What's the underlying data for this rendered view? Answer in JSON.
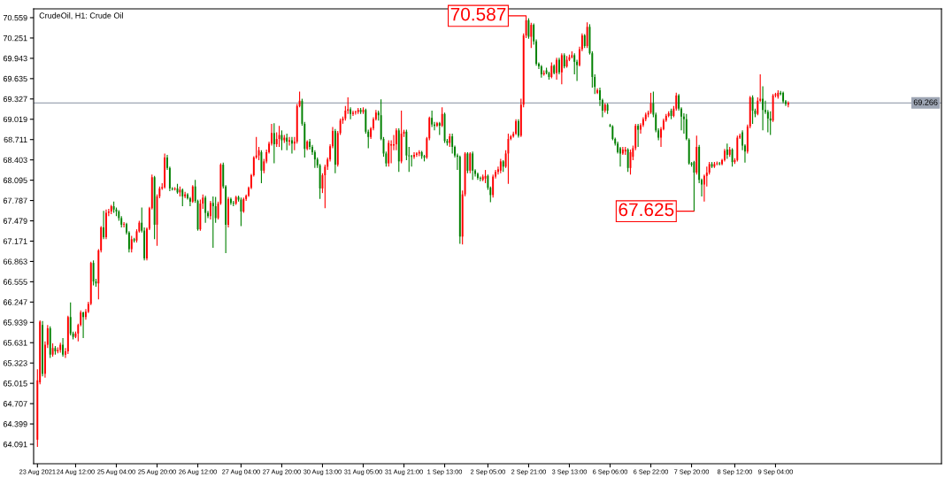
{
  "chart_data": {
    "type": "candlestick",
    "title": "CrudeOil, H1: Crude Oil",
    "categories": [
      "23 Aug 2021",
      null,
      null,
      null,
      null,
      null,
      null,
      null,
      null,
      null,
      null,
      null,
      null,
      null,
      null,
      "24 Aug 12:00",
      null,
      null,
      null,
      null,
      null,
      null,
      null,
      null,
      null,
      null,
      null,
      null,
      null,
      null,
      null,
      "25 Aug 04:00",
      null,
      null,
      null,
      null,
      null,
      null,
      null,
      null,
      null,
      null,
      null,
      null,
      null,
      null,
      null,
      "25 Aug 20:00",
      null,
      null,
      null,
      null,
      null,
      null,
      null,
      null,
      null,
      null,
      null,
      null,
      null,
      null,
      null,
      "26 Aug 12:00",
      null,
      null,
      null,
      null,
      null,
      null,
      null,
      null,
      null,
      null,
      null,
      null,
      null,
      null,
      null,
      null,
      "27 Aug 04:00",
      null,
      null,
      null,
      null,
      null,
      null,
      null,
      null,
      null,
      null,
      null,
      null,
      null,
      null,
      null,
      "27 Aug 20:00",
      null,
      null,
      null,
      null,
      null,
      null,
      null,
      null,
      null,
      null,
      null,
      null,
      null,
      null,
      null,
      "30 Aug 13:00",
      null,
      null,
      null,
      null,
      null,
      null,
      null,
      null,
      null,
      null,
      null,
      null,
      null,
      null,
      null,
      "31 Aug 05:00",
      null,
      null,
      null,
      null,
      null,
      null,
      null,
      null,
      null,
      null,
      null,
      null,
      null,
      null,
      null,
      "31 Aug 21:00",
      null,
      null,
      null,
      null,
      null,
      null,
      null,
      null,
      null,
      null,
      null,
      null,
      null,
      null,
      null,
      "1 Sep 13:00",
      null,
      null,
      null,
      null,
      null,
      null,
      null,
      null,
      null,
      null,
      null,
      null,
      null,
      null,
      null,
      null,
      "2 Sep 05:00",
      null,
      null,
      null,
      null,
      null,
      null,
      null,
      null,
      null,
      null,
      null,
      null,
      null,
      null,
      null,
      "2 Sep 21:00",
      null,
      null,
      null,
      null,
      null,
      null,
      null,
      null,
      null,
      null,
      null,
      null,
      null,
      null,
      null,
      "3 Sep 13:00",
      null,
      null,
      null,
      null,
      null,
      null,
      null,
      null,
      null,
      null,
      null,
      null,
      null,
      null,
      null,
      "6 Sep 06:00",
      null,
      null,
      null,
      null,
      null,
      null,
      null,
      null,
      null,
      null,
      null,
      null,
      null,
      null,
      null,
      "6 Sep 22:00",
      null,
      null,
      null,
      null,
      null,
      null,
      null,
      null,
      null,
      null,
      null,
      null,
      null,
      null,
      null,
      "7 Sep 20:00",
      null,
      null,
      null,
      null,
      null,
      null,
      null,
      null,
      null,
      null,
      null,
      null,
      null,
      null,
      null,
      null,
      "8 Sep 12:00",
      null,
      null,
      null,
      null,
      null,
      null,
      null,
      null,
      null,
      null,
      null,
      null,
      null,
      null,
      null,
      "9 Sep 04:00",
      null,
      null,
      null,
      null,
      null
    ],
    "ohlc": [
      [
        64.16,
        65.23,
        64.05,
        65.06
      ],
      [
        65.03,
        65.97,
        65.0,
        65.95
      ],
      [
        65.9,
        65.96,
        65.12,
        65.16
      ],
      [
        65.16,
        65.65,
        65.1,
        65.6
      ],
      [
        65.6,
        65.9,
        65.55,
        65.85
      ],
      [
        65.85,
        65.88,
        65.4,
        65.45
      ],
      [
        65.45,
        65.62,
        65.42,
        65.55
      ],
      [
        65.55,
        65.58,
        65.45,
        65.5
      ],
      [
        65.5,
        65.56,
        65.47,
        65.52
      ],
      [
        65.52,
        65.63,
        65.48,
        65.6
      ],
      [
        65.6,
        65.7,
        65.42,
        65.45
      ],
      [
        65.45,
        65.55,
        65.4,
        65.5
      ],
      [
        65.5,
        66.04,
        65.46,
        66.02
      ],
      [
        66.02,
        66.24,
        65.74,
        65.77
      ],
      [
        65.77,
        65.8,
        65.68,
        65.72
      ],
      [
        65.72,
        65.8,
        65.7,
        65.77
      ],
      [
        65.77,
        65.92,
        65.65,
        65.9
      ],
      [
        65.9,
        66.12,
        65.88,
        66.09
      ],
      [
        66.09,
        66.1,
        65.7,
        66.02
      ],
      [
        66.02,
        66.14,
        65.98,
        66.1
      ],
      [
        66.1,
        66.25,
        66.08,
        66.22
      ],
      [
        66.22,
        66.86,
        66.2,
        66.84
      ],
      [
        66.84,
        66.88,
        66.5,
        66.56
      ],
      [
        66.56,
        66.6,
        66.48,
        66.53
      ],
      [
        66.53,
        67.05,
        66.29,
        67.03
      ],
      [
        67.03,
        67.4,
        67.0,
        67.38
      ],
      [
        67.38,
        67.63,
        67.2,
        67.23
      ],
      [
        67.23,
        67.65,
        67.2,
        67.6
      ],
      [
        67.6,
        67.66,
        67.55,
        67.62
      ],
      [
        67.62,
        67.72,
        67.58,
        67.7
      ],
      [
        67.7,
        67.77,
        67.6,
        67.65
      ],
      [
        67.65,
        67.68,
        67.55,
        67.62
      ],
      [
        67.62,
        67.64,
        67.48,
        67.52
      ],
      [
        67.52,
        67.55,
        67.38,
        67.42
      ],
      [
        67.42,
        67.46,
        67.38,
        67.43
      ],
      [
        67.43,
        67.45,
        67.27,
        67.3
      ],
      [
        67.3,
        67.32,
        67.0,
        67.05
      ],
      [
        67.05,
        67.25,
        67.0,
        67.2
      ],
      [
        67.2,
        67.22,
        67.15,
        67.18
      ],
      [
        67.18,
        67.35,
        67.15,
        67.32
      ],
      [
        67.32,
        67.48,
        67.3,
        67.45
      ],
      [
        67.45,
        67.68,
        67.3,
        67.33
      ],
      [
        67.33,
        67.38,
        66.88,
        66.91
      ],
      [
        66.91,
        67.38,
        66.88,
        67.36
      ],
      [
        67.36,
        67.69,
        67.34,
        67.67
      ],
      [
        67.67,
        68.18,
        67.65,
        68.14
      ],
      [
        68.14,
        68.16,
        67.2,
        67.42
      ],
      [
        67.42,
        67.88,
        67.1,
        67.85
      ],
      [
        67.85,
        68.0,
        67.82,
        67.97
      ],
      [
        67.97,
        68.05,
        67.95,
        67.99
      ],
      [
        67.99,
        68.5,
        67.97,
        68.44
      ],
      [
        68.44,
        68.48,
        68.25,
        68.28
      ],
      [
        68.28,
        68.3,
        67.93,
        67.97
      ],
      [
        67.97,
        67.99,
        67.94,
        67.96
      ],
      [
        67.96,
        67.99,
        67.94,
        67.97
      ],
      [
        67.97,
        68.04,
        67.89,
        67.91
      ],
      [
        67.91,
        68.0,
        67.85,
        67.95
      ],
      [
        67.95,
        67.97,
        67.7,
        67.85
      ],
      [
        67.85,
        67.92,
        67.82,
        67.88
      ],
      [
        67.88,
        67.9,
        67.8,
        67.82
      ],
      [
        67.82,
        67.84,
        67.7,
        67.77
      ],
      [
        67.77,
        68.02,
        67.75,
        68.0
      ],
      [
        68.0,
        68.1,
        67.75,
        67.78
      ],
      [
        67.78,
        67.8,
        67.33,
        67.35
      ],
      [
        67.35,
        67.8,
        67.33,
        67.74
      ],
      [
        67.74,
        67.88,
        67.66,
        67.83
      ],
      [
        67.83,
        67.86,
        67.45,
        67.6
      ],
      [
        67.6,
        67.63,
        67.52,
        67.55
      ],
      [
        67.55,
        67.78,
        67.5,
        67.75
      ],
      [
        67.75,
        67.85,
        67.07,
        67.7
      ],
      [
        67.7,
        67.84,
        67.45,
        67.52
      ],
      [
        67.52,
        67.77,
        67.5,
        67.74
      ],
      [
        67.74,
        68.35,
        67.72,
        68.33
      ],
      [
        68.33,
        68.36,
        67.97,
        68.0
      ],
      [
        68.0,
        68.02,
        66.99,
        67.42
      ],
      [
        67.42,
        67.84,
        67.38,
        67.81
      ],
      [
        67.81,
        67.83,
        67.72,
        67.75
      ],
      [
        67.75,
        67.78,
        67.7,
        67.74
      ],
      [
        67.74,
        67.86,
        67.72,
        67.84
      ],
      [
        67.84,
        67.86,
        67.77,
        67.8
      ],
      [
        67.8,
        67.83,
        67.4,
        67.62
      ],
      [
        67.62,
        67.83,
        67.6,
        67.81
      ],
      [
        67.81,
        67.88,
        67.78,
        67.86
      ],
      [
        67.86,
        68.0,
        67.84,
        67.98
      ],
      [
        67.98,
        68.19,
        67.96,
        68.17
      ],
      [
        68.17,
        68.46,
        68.15,
        68.44
      ],
      [
        68.44,
        68.75,
        68.42,
        68.47
      ],
      [
        68.47,
        68.6,
        68.4,
        68.55
      ],
      [
        68.52,
        68.55,
        68.05,
        68.24
      ],
      [
        68.24,
        68.42,
        68.2,
        68.38
      ],
      [
        68.38,
        68.56,
        68.35,
        68.52
      ],
      [
        68.52,
        68.68,
        68.5,
        68.65
      ],
      [
        68.65,
        68.95,
        68.62,
        68.81
      ],
      [
        68.81,
        68.96,
        68.35,
        68.64
      ],
      [
        68.64,
        68.82,
        68.6,
        68.72
      ],
      [
        68.72,
        68.92,
        68.6,
        68.78
      ],
      [
        68.78,
        68.85,
        68.55,
        68.7
      ],
      [
        68.7,
        68.78,
        68.66,
        68.74
      ],
      [
        68.74,
        68.8,
        68.55,
        68.68
      ],
      [
        68.68,
        68.75,
        68.62,
        68.7
      ],
      [
        68.7,
        68.75,
        68.5,
        68.65
      ],
      [
        68.65,
        68.75,
        68.55,
        68.68
      ],
      [
        68.68,
        69.25,
        68.65,
        69.22
      ],
      [
        69.22,
        69.44,
        69.2,
        69.3
      ],
      [
        69.3,
        69.33,
        68.92,
        68.95
      ],
      [
        68.95,
        68.98,
        68.44,
        68.57
      ],
      [
        68.57,
        68.7,
        68.55,
        68.68
      ],
      [
        68.68,
        68.72,
        68.56,
        68.6
      ],
      [
        68.6,
        68.63,
        68.48,
        68.52
      ],
      [
        68.52,
        68.55,
        68.28,
        68.41
      ],
      [
        68.41,
        68.44,
        68.28,
        68.32
      ],
      [
        68.32,
        68.34,
        67.81,
        67.97
      ],
      [
        67.97,
        68.2,
        67.9,
        68.17
      ],
      [
        68.17,
        68.33,
        67.67,
        68.3
      ],
      [
        68.3,
        68.44,
        68.25,
        68.41
      ],
      [
        68.41,
        68.64,
        68.38,
        68.61
      ],
      [
        68.61,
        68.9,
        68.58,
        68.84
      ],
      [
        68.84,
        68.87,
        68.2,
        68.33
      ],
      [
        68.33,
        68.84,
        68.3,
        68.81
      ],
      [
        68.81,
        69.03,
        68.78,
        69.0
      ],
      [
        69.0,
        69.06,
        68.95,
        69.03
      ],
      [
        69.03,
        69.22,
        69.0,
        69.15
      ],
      [
        69.15,
        69.35,
        69.1,
        69.17
      ],
      [
        69.17,
        69.2,
        69.02,
        69.1
      ],
      [
        69.1,
        69.15,
        69.07,
        69.12
      ],
      [
        69.12,
        69.15,
        69.09,
        69.13
      ],
      [
        69.13,
        69.19,
        69.1,
        69.16
      ],
      [
        69.16,
        69.19,
        69.1,
        69.13
      ],
      [
        69.13,
        69.2,
        69.1,
        69.16
      ],
      [
        69.16,
        69.18,
        68.8,
        68.83
      ],
      [
        68.83,
        68.86,
        68.58,
        68.75
      ],
      [
        68.75,
        68.9,
        68.72,
        68.88
      ],
      [
        68.88,
        69.05,
        68.85,
        69.02
      ],
      [
        69.02,
        69.16,
        69.0,
        69.12
      ],
      [
        69.12,
        69.15,
        69.0,
        69.08
      ],
      [
        69.08,
        69.32,
        68.7,
        68.72
      ],
      [
        68.72,
        68.75,
        68.45,
        68.5
      ],
      [
        68.5,
        68.53,
        68.3,
        68.35
      ],
      [
        68.35,
        68.7,
        68.3,
        68.66
      ],
      [
        68.62,
        68.7,
        68.35,
        68.64
      ],
      [
        68.62,
        68.78,
        68.55,
        68.64
      ],
      [
        68.64,
        68.88,
        68.55,
        68.85
      ],
      [
        68.85,
        68.88,
        68.22,
        68.38
      ],
      [
        68.38,
        69.15,
        68.35,
        68.8
      ],
      [
        68.8,
        68.86,
        68.75,
        68.83
      ],
      [
        68.83,
        68.86,
        68.4,
        68.47
      ],
      [
        68.47,
        68.6,
        68.22,
        68.46
      ],
      [
        68.46,
        68.48,
        68.3,
        68.45
      ],
      [
        68.45,
        68.52,
        68.42,
        68.48
      ],
      [
        68.48,
        68.52,
        68.45,
        68.5
      ],
      [
        68.5,
        68.55,
        68.46,
        68.52
      ],
      [
        68.52,
        68.54,
        68.42,
        68.46
      ],
      [
        68.46,
        68.48,
        68.38,
        68.44
      ],
      [
        68.44,
        68.75,
        68.42,
        68.73
      ],
      [
        68.73,
        69.06,
        68.7,
        69.04
      ],
      [
        69.04,
        69.15,
        68.9,
        68.94
      ],
      [
        68.94,
        68.98,
        68.85,
        68.92
      ],
      [
        68.92,
        68.98,
        68.9,
        68.96
      ],
      [
        68.96,
        68.98,
        68.78,
        68.92
      ],
      [
        68.92,
        69.2,
        68.9,
        69.1
      ],
      [
        69.1,
        69.12,
        68.66,
        68.69
      ],
      [
        68.69,
        68.72,
        68.62,
        68.66
      ],
      [
        68.66,
        68.8,
        68.6,
        68.76
      ],
      [
        68.76,
        68.8,
        68.5,
        68.6
      ],
      [
        68.6,
        68.62,
        68.44,
        68.47
      ],
      [
        68.47,
        68.5,
        68.25,
        68.45
      ],
      [
        68.45,
        68.47,
        67.13,
        67.24
      ],
      [
        67.24,
        67.94,
        67.12,
        67.88
      ],
      [
        67.88,
        68.52,
        67.85,
        68.5
      ],
      [
        68.5,
        68.52,
        68.2,
        68.24
      ],
      [
        68.24,
        68.52,
        68.2,
        68.5
      ],
      [
        68.5,
        68.53,
        68.1,
        68.24
      ],
      [
        68.24,
        68.26,
        68.15,
        68.19
      ],
      [
        68.19,
        68.21,
        68.1,
        68.13
      ],
      [
        68.13,
        68.15,
        68.08,
        68.12
      ],
      [
        68.1,
        68.18,
        68.08,
        68.15
      ],
      [
        68.12,
        68.25,
        68.05,
        68.16
      ],
      [
        68.16,
        68.18,
        67.95,
        67.98
      ],
      [
        67.98,
        68.0,
        67.76,
        67.87
      ],
      [
        67.87,
        68.18,
        67.83,
        68.15
      ],
      [
        68.15,
        68.25,
        68.12,
        68.22
      ],
      [
        68.22,
        68.3,
        68.18,
        68.26
      ],
      [
        68.24,
        68.42,
        68.2,
        68.38
      ],
      [
        68.38,
        68.4,
        68.22,
        68.3
      ],
      [
        68.3,
        68.55,
        68.28,
        68.5
      ],
      [
        68.5,
        68.8,
        68.04,
        68.72
      ],
      [
        68.72,
        68.78,
        68.7,
        68.76
      ],
      [
        68.76,
        68.83,
        68.74,
        68.8
      ],
      [
        68.8,
        69.02,
        68.78,
        68.99
      ],
      [
        68.99,
        69.02,
        68.74,
        68.77
      ],
      [
        68.77,
        69.33,
        68.75,
        69.24
      ],
      [
        69.24,
        70.32,
        69.2,
        70.29
      ],
      [
        70.29,
        70.587,
        70.25,
        70.52
      ],
      [
        70.52,
        70.55,
        70.24,
        70.27
      ],
      [
        70.27,
        70.48,
        70.1,
        70.45
      ],
      [
        70.45,
        70.47,
        70.15,
        70.2
      ],
      [
        70.2,
        70.23,
        69.83,
        69.86
      ],
      [
        69.86,
        69.88,
        69.78,
        69.82
      ],
      [
        69.82,
        69.84,
        69.65,
        69.7
      ],
      [
        69.7,
        69.76,
        69.68,
        69.72
      ],
      [
        69.76,
        69.8,
        69.7,
        69.72
      ],
      [
        69.72,
        69.74,
        69.62,
        69.66
      ],
      [
        69.66,
        69.88,
        69.64,
        69.83
      ],
      [
        69.83,
        69.85,
        69.7,
        69.72
      ],
      [
        69.72,
        69.95,
        69.62,
        69.92
      ],
      [
        69.92,
        69.95,
        69.7,
        69.73
      ],
      [
        69.73,
        70.02,
        69.55,
        69.99
      ],
      [
        69.99,
        70.02,
        69.79,
        69.82
      ],
      [
        69.82,
        69.98,
        69.8,
        69.92
      ],
      [
        69.92,
        70.0,
        69.9,
        69.96
      ],
      [
        69.96,
        70.05,
        69.94,
        69.99
      ],
      [
        69.99,
        70.02,
        69.7,
        69.89
      ],
      [
        69.89,
        69.92,
        69.6,
        69.84
      ],
      [
        69.84,
        70.12,
        69.82,
        70.08
      ],
      [
        70.08,
        70.32,
        70.05,
        70.29
      ],
      [
        70.29,
        70.31,
        70.1,
        70.13
      ],
      [
        70.13,
        70.49,
        70.1,
        70.42
      ],
      [
        70.42,
        70.46,
        70.0,
        70.02
      ],
      [
        70.02,
        70.05,
        69.5,
        69.66
      ],
      [
        69.66,
        69.7,
        69.4,
        69.51
      ],
      [
        69.42,
        69.49,
        69.4,
        69.46
      ],
      [
        69.46,
        69.5,
        69.22,
        69.31
      ],
      [
        69.31,
        69.33,
        69.05,
        69.15
      ],
      [
        69.15,
        69.26,
        69.12,
        69.24
      ],
      [
        69.24,
        69.26,
        69.1,
        69.15
      ],
      [
        68.93,
        68.95,
        68.9,
        68.91
      ],
      [
        68.91,
        68.93,
        68.7,
        68.72
      ],
      [
        68.72,
        68.74,
        68.62,
        68.65
      ],
      [
        68.65,
        68.68,
        68.5,
        68.52
      ],
      [
        68.58,
        68.6,
        68.3,
        68.5
      ],
      [
        68.5,
        68.6,
        68.48,
        68.56
      ],
      [
        68.53,
        68.6,
        68.48,
        68.56
      ],
      [
        68.56,
        68.58,
        68.22,
        68.28
      ],
      [
        68.28,
        68.56,
        68.18,
        68.52
      ],
      [
        68.45,
        68.62,
        68.4,
        68.58
      ],
      [
        68.58,
        68.95,
        68.55,
        68.92
      ],
      [
        68.92,
        68.95,
        68.6,
        68.86
      ],
      [
        68.86,
        68.96,
        68.8,
        68.93
      ],
      [
        68.93,
        69.05,
        68.9,
        69.02
      ],
      [
        69.02,
        69.12,
        68.99,
        69.09
      ],
      [
        69.09,
        69.15,
        69.05,
        69.12
      ],
      [
        69.12,
        69.42,
        69.1,
        69.26
      ],
      [
        69.26,
        69.44,
        69.05,
        69.09
      ],
      [
        69.09,
        69.12,
        68.82,
        68.85
      ],
      [
        68.85,
        68.88,
        68.7,
        68.74
      ],
      [
        68.74,
        68.9,
        68.6,
        68.87
      ],
      [
        68.87,
        69.03,
        68.85,
        69.0
      ],
      [
        69.0,
        69.1,
        68.98,
        69.07
      ],
      [
        69.07,
        69.14,
        69.05,
        69.11
      ],
      [
        69.15,
        69.18,
        69.02,
        69.07
      ],
      [
        69.07,
        69.22,
        69.05,
        69.18
      ],
      [
        69.18,
        69.42,
        69.15,
        69.38
      ],
      [
        69.38,
        69.4,
        69.15,
        69.18
      ],
      [
        69.18,
        69.2,
        68.85,
        69.06
      ],
      [
        69.06,
        69.11,
        68.8,
        69.02
      ],
      [
        69.02,
        69.1,
        68.7,
        68.72
      ],
      [
        68.71,
        68.73,
        68.33,
        68.35
      ],
      [
        68.35,
        68.37,
        68.3,
        68.33
      ],
      [
        68.37,
        68.39,
        67.625,
        68.21
      ],
      [
        68.21,
        68.77,
        68.18,
        68.6
      ],
      [
        68.6,
        68.63,
        68.05,
        68.1
      ],
      [
        68.1,
        68.12,
        67.85,
        68.03
      ],
      [
        68.03,
        68.18,
        67.77,
        68.16
      ],
      [
        68.16,
        68.3,
        68.0,
        68.21
      ],
      [
        68.21,
        68.37,
        68.18,
        68.34
      ],
      [
        68.34,
        68.37,
        68.28,
        68.3
      ],
      [
        68.3,
        68.37,
        68.28,
        68.34
      ],
      [
        68.34,
        68.38,
        68.32,
        68.35
      ],
      [
        68.35,
        68.37,
        68.32,
        68.34
      ],
      [
        68.34,
        68.42,
        68.32,
        68.4
      ],
      [
        68.4,
        68.57,
        68.38,
        68.54
      ],
      [
        68.56,
        68.65,
        68.42,
        68.48
      ],
      [
        68.48,
        68.6,
        68.45,
        68.56
      ],
      [
        68.56,
        68.58,
        68.3,
        68.37
      ],
      [
        68.37,
        68.43,
        68.34,
        68.4
      ],
      [
        68.4,
        68.77,
        68.38,
        68.74
      ],
      [
        68.74,
        68.8,
        68.72,
        68.77
      ],
      [
        68.82,
        68.85,
        68.55,
        68.62
      ],
      [
        68.62,
        68.64,
        68.36,
        68.53
      ],
      [
        68.53,
        68.94,
        68.5,
        68.91
      ],
      [
        68.91,
        69.37,
        68.88,
        69.35
      ],
      [
        69.35,
        69.38,
        68.95,
        69.15
      ],
      [
        69.15,
        69.18,
        69.05,
        69.1
      ],
      [
        69.1,
        69.35,
        69.08,
        69.3
      ],
      [
        69.3,
        69.7,
        69.28,
        69.33
      ],
      [
        69.33,
        69.52,
        68.85,
        69.16
      ],
      [
        69.16,
        69.3,
        69.1,
        69.13
      ],
      [
        69.13,
        69.16,
        68.82,
        69.03
      ],
      [
        69.03,
        69.14,
        68.78,
        69.0
      ],
      [
        69.0,
        69.4,
        68.98,
        69.38
      ],
      [
        69.38,
        69.42,
        69.35,
        69.4
      ],
      [
        69.36,
        69.46,
        69.33,
        69.42
      ],
      [
        69.42,
        69.45,
        69.38,
        69.4
      ],
      [
        69.42,
        69.44,
        69.26,
        69.29
      ],
      [
        69.29,
        69.31,
        69.22,
        69.25
      ],
      [
        69.24,
        69.29,
        69.2,
        69.266
      ]
    ],
    "colors": [
      "#ff0000",
      "#ff0000",
      "#008000",
      "#ff0000",
      "#ff0000",
      "#008000",
      "#ff0000",
      "#008000",
      "#ff0000",
      "#ff0000",
      "#008000",
      "#ff0000",
      "#ff0000",
      "#008000",
      "#008000",
      "#ff0000",
      "#ff0000",
      "#ff0000",
      "#008000",
      "#ff0000",
      "#ff0000",
      "#ff0000",
      "#008000",
      "#008000",
      "#ff0000",
      "#ff0000",
      "#008000",
      "#ff0000",
      "#ff0000",
      "#ff0000",
      "#008000",
      "#008000",
      "#008000",
      "#008000",
      "#ff0000",
      "#008000",
      "#008000",
      "#ff0000",
      "#008000",
      "#ff0000",
      "#ff0000",
      "#008000",
      "#008000",
      "#ff0000",
      "#ff0000",
      "#ff0000",
      "#008000",
      "#ff0000",
      "#ff0000",
      "#ff0000",
      "#ff0000",
      "#008000",
      "#008000",
      "#008000",
      "#ff0000",
      "#008000",
      "#ff0000",
      "#008000",
      "#ff0000",
      "#008000",
      "#008000",
      "#ff0000",
      "#008000",
      "#008000",
      "#ff0000",
      "#ff0000",
      "#008000",
      "#008000",
      "#ff0000",
      "#008000",
      "#008000",
      "#ff0000",
      "#ff0000",
      "#008000",
      "#008000",
      "#ff0000",
      "#008000",
      "#008000",
      "#ff0000",
      "#008000",
      "#008000",
      "#ff0000",
      "#ff0000",
      "#ff0000",
      "#ff0000",
      "#ff0000",
      "#ff0000",
      "#ff0000",
      "#008000",
      "#ff0000",
      "#ff0000",
      "#ff0000",
      "#ff0000",
      "#008000",
      "#ff0000",
      "#ff0000",
      "#008000",
      "#ff0000",
      "#008000",
      "#ff0000",
      "#008000",
      "#ff0000",
      "#ff0000",
      "#ff0000",
      "#008000",
      "#008000",
      "#ff0000",
      "#008000",
      "#008000",
      "#008000",
      "#008000",
      "#008000",
      "#ff0000",
      "#ff0000",
      "#ff0000",
      "#ff0000",
      "#ff0000",
      "#008000",
      "#ff0000",
      "#ff0000",
      "#ff0000",
      "#ff0000",
      "#ff0000",
      "#008000",
      "#ff0000",
      "#ff0000",
      "#ff0000",
      "#008000",
      "#ff0000",
      "#008000",
      "#008000",
      "#ff0000",
      "#ff0000",
      "#ff0000",
      "#008000",
      "#008000",
      "#008000",
      "#008000",
      "#ff0000",
      "#ff0000",
      "#ff0000",
      "#ff0000",
      "#008000",
      "#ff0000",
      "#ff0000",
      "#008000",
      "#008000",
      "#008000",
      "#ff0000",
      "#ff0000",
      "#ff0000",
      "#008000",
      "#008000",
      "#ff0000",
      "#ff0000",
      "#008000",
      "#008000",
      "#ff0000",
      "#008000",
      "#ff0000",
      "#008000",
      "#008000",
      "#ff0000",
      "#008000",
      "#008000",
      "#008000",
      "#008000",
      "#ff0000",
      "#ff0000",
      "#008000",
      "#ff0000",
      "#008000",
      "#008000",
      "#008000",
      "#008000",
      "#ff0000",
      "#ff0000",
      "#008000",
      "#008000",
      "#ff0000",
      "#ff0000",
      "#ff0000",
      "#ff0000",
      "#008000",
      "#ff0000",
      "#ff0000",
      "#ff0000",
      "#ff0000",
      "#ff0000",
      "#008000",
      "#ff0000",
      "#ff0000",
      "#ff0000",
      "#008000",
      "#ff0000",
      "#008000",
      "#008000",
      "#008000",
      "#008000",
      "#ff0000",
      "#008000",
      "#008000",
      "#ff0000",
      "#008000",
      "#ff0000",
      "#008000",
      "#ff0000",
      "#008000",
      "#ff0000",
      "#ff0000",
      "#ff0000",
      "#008000",
      "#008000",
      "#ff0000",
      "#ff0000",
      "#008000",
      "#ff0000",
      "#008000",
      "#008000",
      "#008000",
      "#ff0000",
      "#008000",
      "#008000",
      "#ff0000",
      "#008000",
      "#008000",
      "#008000",
      "#008000",
      "#008000",
      "#008000",
      "#ff0000",
      "#ff0000",
      "#008000",
      "#ff0000",
      "#ff0000",
      "#ff0000",
      "#008000",
      "#ff0000",
      "#ff0000",
      "#ff0000",
      "#ff0000",
      "#ff0000",
      "#008000",
      "#008000",
      "#008000",
      "#ff0000",
      "#ff0000",
      "#ff0000",
      "#ff0000",
      "#008000",
      "#ff0000",
      "#ff0000",
      "#008000",
      "#008000",
      "#008000",
      "#008000",
      "#008000",
      "#008000",
      "#008000",
      "#ff0000",
      "#008000",
      "#008000",
      "#ff0000",
      "#ff0000",
      "#ff0000",
      "#008000",
      "#ff0000",
      "#ff0000",
      "#008000",
      "#ff0000",
      "#ff0000",
      "#008000",
      "#ff0000",
      "#008000",
      "#ff0000",
      "#ff0000",
      "#ff0000",
      "#008000",
      "#008000",
      "#ff0000",
      "#ff0000",
      "#008000",
      "#008000",
      "#ff0000",
      "#ff0000",
      "#008000",
      "#008000",
      "#008000",
      "#008000",
      "#ff0000",
      "#ff0000",
      "#ff0000",
      "#008000",
      "#008000",
      "#008000",
      "#ff0000"
    ],
    "ylim": [
      63.796,
      70.693
    ],
    "yticks": [
      64.091,
      64.399,
      64.707,
      65.015,
      65.323,
      65.631,
      65.939,
      66.247,
      66.555,
      66.863,
      67.171,
      67.479,
      67.787,
      68.095,
      68.403,
      68.711,
      69.019,
      69.327,
      69.635,
      69.943,
      70.251,
      70.559
    ],
    "ref_lines": [
      {
        "axis": "y",
        "value": 69.266,
        "label": "69.266",
        "color": "#9ea6b4"
      }
    ],
    "annotations": [
      "70.587",
      "67.625"
    ]
  }
}
